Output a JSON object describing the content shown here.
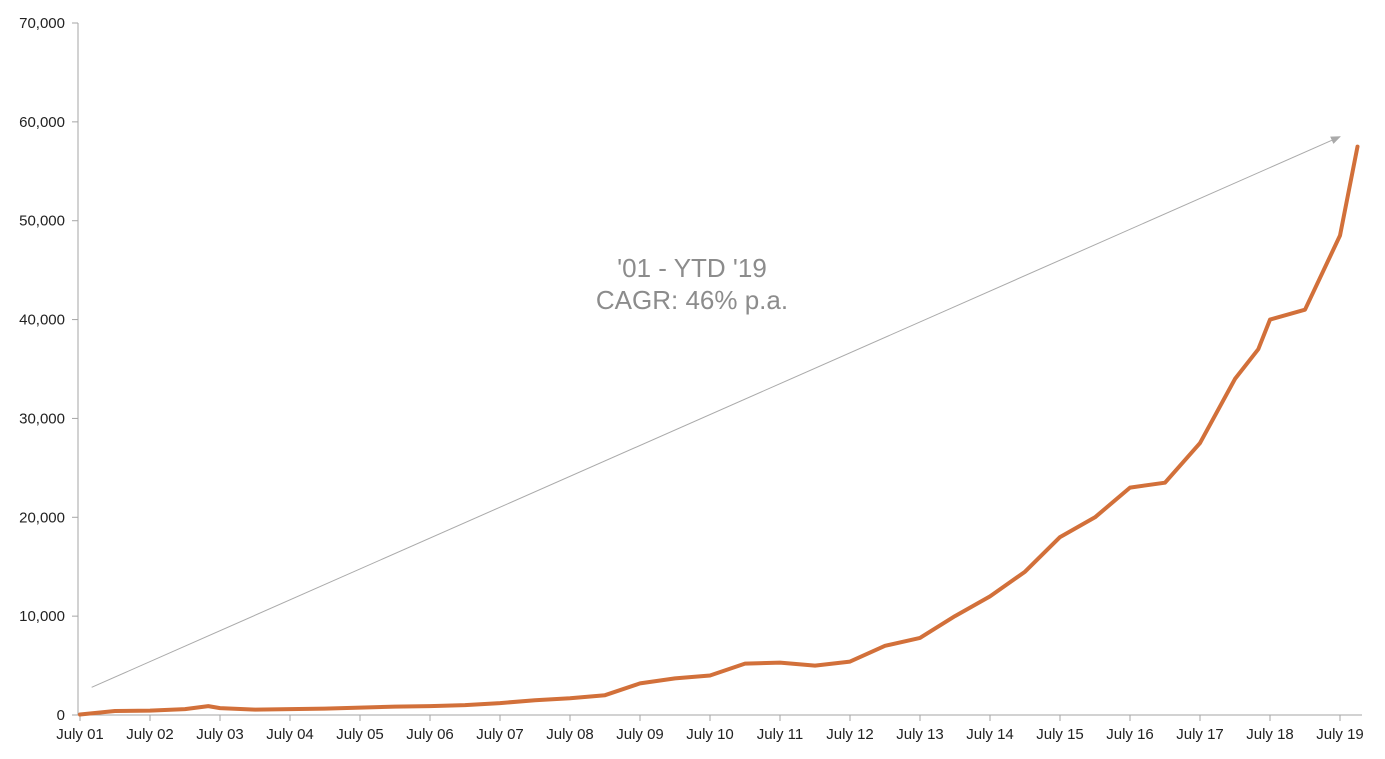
{
  "chart_data": {
    "type": "line",
    "title": "",
    "xlabel": "",
    "ylabel": "",
    "ylim": [
      0,
      70000
    ],
    "yticks": [
      0,
      10000,
      20000,
      30000,
      40000,
      50000,
      60000,
      70000
    ],
    "ytick_labels": [
      "0",
      "10,000",
      "20,000",
      "30,000",
      "40,000",
      "50,000",
      "60,000",
      "70,000"
    ],
    "xlim": [
      "2001-07",
      "2019-10"
    ],
    "xtick_labels": [
      "July 01",
      "July 02",
      "July 03",
      "July 04",
      "July 05",
      "July 06",
      "July 07",
      "July 08",
      "July 09",
      "July 10",
      "July 11",
      "July 12",
      "July 13",
      "July 14",
      "July 15",
      "July 16",
      "July 17",
      "July 18",
      "July 19"
    ],
    "grid": false,
    "legend": "none",
    "series_color": "#d2703a",
    "arrow_color": "#aaaaaa",
    "annotation_color": "#8c8c8c",
    "annotation": {
      "line1": "'01 - YTD '19",
      "line2": "CAGR: 46% p.a."
    },
    "trend_arrow": {
      "from": {
        "x": "2001-09",
        "y": 2800
      },
      "to": {
        "x": "2019-07",
        "y": 58500
      }
    },
    "series": [
      {
        "x": [
          "2001-07",
          "2002-01",
          "2002-07",
          "2003-01",
          "2003-05",
          "2003-07",
          "2004-01",
          "2004-07",
          "2005-01",
          "2005-07",
          "2006-01",
          "2006-07",
          "2007-01",
          "2007-07",
          "2008-01",
          "2008-07",
          "2009-01",
          "2009-07",
          "2010-01",
          "2010-07",
          "2011-01",
          "2011-07",
          "2012-01",
          "2012-07",
          "2013-01",
          "2013-07",
          "2014-01",
          "2014-07",
          "2015-01",
          "2015-07",
          "2016-01",
          "2016-07",
          "2017-01",
          "2017-07",
          "2018-01",
          "2018-05",
          "2018-07",
          "2019-01",
          "2019-07",
          "2019-10"
        ],
        "values": [
          50,
          400,
          450,
          600,
          900,
          700,
          550,
          600,
          650,
          750,
          850,
          900,
          1000,
          1200,
          1500,
          1700,
          2000,
          3200,
          3700,
          4000,
          5200,
          5300,
          5000,
          5400,
          7000,
          7800,
          10000,
          12000,
          14500,
          18000,
          20000,
          23000,
          23500,
          27500,
          34000,
          37000,
          40000,
          41000,
          48500,
          57500
        ]
      }
    ]
  }
}
